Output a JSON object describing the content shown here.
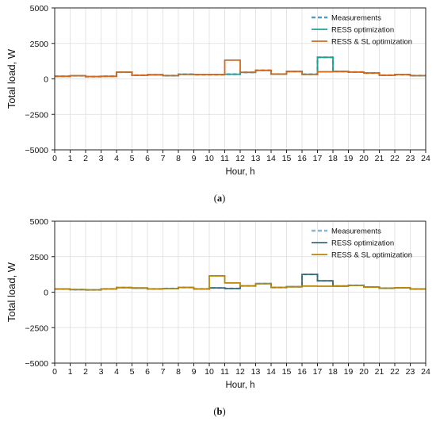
{
  "chart_data": [
    {
      "type": "line",
      "step": true,
      "caption_letter": "a",
      "xlabel": "Hour, h",
      "ylabel": "Total load, W",
      "xlim": [
        0,
        24
      ],
      "ylim": [
        -5000,
        5000
      ],
      "x_ticks": [
        0,
        1,
        2,
        3,
        4,
        5,
        6,
        7,
        8,
        9,
        10,
        11,
        12,
        13,
        14,
        15,
        16,
        17,
        18,
        19,
        20,
        21,
        22,
        23,
        24
      ],
      "y_ticks": [
        5000,
        2500,
        0,
        -2500,
        -5000
      ],
      "y_tick_labels": [
        "5000",
        "2500",
        "0",
        "−2500",
        "−5000"
      ],
      "grid": true,
      "legend_position": "top-right",
      "hours": [
        0,
        1,
        2,
        3,
        4,
        5,
        6,
        7,
        8,
        9,
        10,
        11,
        12,
        13,
        14,
        15,
        16,
        17,
        18,
        19,
        20,
        21,
        22,
        23
      ],
      "series": [
        {
          "name": "Measurements",
          "color": "#4aa0c8",
          "dash": true,
          "values": [
            180,
            220,
            160,
            180,
            470,
            260,
            290,
            230,
            320,
            300,
            300,
            330,
            460,
            600,
            340,
            520,
            320,
            1520,
            520,
            480,
            410,
            260,
            300,
            230
          ]
        },
        {
          "name": "RESS optimization",
          "color": "#20a090",
          "dash": false,
          "values": [
            180,
            220,
            160,
            180,
            470,
            260,
            290,
            230,
            320,
            300,
            300,
            330,
            460,
            600,
            340,
            520,
            320,
            1520,
            520,
            480,
            410,
            260,
            300,
            230
          ]
        },
        {
          "name": "RESS & SL optimization",
          "color": "#d2691e",
          "dash": false,
          "values": [
            180,
            220,
            160,
            180,
            470,
            260,
            290,
            230,
            320,
            300,
            300,
            1320,
            460,
            600,
            340,
            520,
            320,
            500,
            520,
            480,
            410,
            260,
            300,
            230
          ]
        }
      ]
    },
    {
      "type": "line",
      "step": true,
      "caption_letter": "b",
      "xlabel": "Hour, h",
      "ylabel": "Total load, W",
      "xlim": [
        0,
        24
      ],
      "ylim": [
        -5000,
        5000
      ],
      "x_ticks": [
        0,
        1,
        2,
        3,
        4,
        5,
        6,
        7,
        8,
        9,
        10,
        11,
        12,
        13,
        14,
        15,
        16,
        17,
        18,
        19,
        20,
        21,
        22,
        23,
        24
      ],
      "y_ticks": [
        5000,
        2500,
        0,
        -2500,
        -5000
      ],
      "y_tick_labels": [
        "5000",
        "2500",
        "0",
        "−2500",
        "−5000"
      ],
      "grid": true,
      "legend_position": "top-right",
      "hours": [
        0,
        1,
        2,
        3,
        4,
        5,
        6,
        7,
        8,
        9,
        10,
        11,
        12,
        13,
        14,
        15,
        16,
        17,
        18,
        19,
        20,
        21,
        22,
        23
      ],
      "series": [
        {
          "name": "Measurements",
          "color": "#7fb8e0",
          "dash": true,
          "values": [
            220,
            180,
            160,
            230,
            320,
            290,
            230,
            260,
            330,
            230,
            300,
            260,
            440,
            600,
            330,
            380,
            1250,
            800,
            430,
            480,
            360,
            280,
            310,
            220
          ]
        },
        {
          "name": "RESS optimization",
          "color": "#3d6b74",
          "dash": false,
          "values": [
            220,
            180,
            160,
            230,
            320,
            290,
            230,
            260,
            330,
            230,
            300,
            260,
            440,
            600,
            330,
            380,
            1250,
            800,
            430,
            480,
            360,
            280,
            310,
            220
          ]
        },
        {
          "name": "RESS & SL optimization",
          "color": "#b8860b",
          "dash": false,
          "values": [
            220,
            180,
            160,
            230,
            320,
            290,
            230,
            260,
            330,
            230,
            1150,
            650,
            440,
            600,
            330,
            380,
            430,
            420,
            430,
            480,
            360,
            280,
            310,
            220
          ]
        }
      ]
    }
  ]
}
